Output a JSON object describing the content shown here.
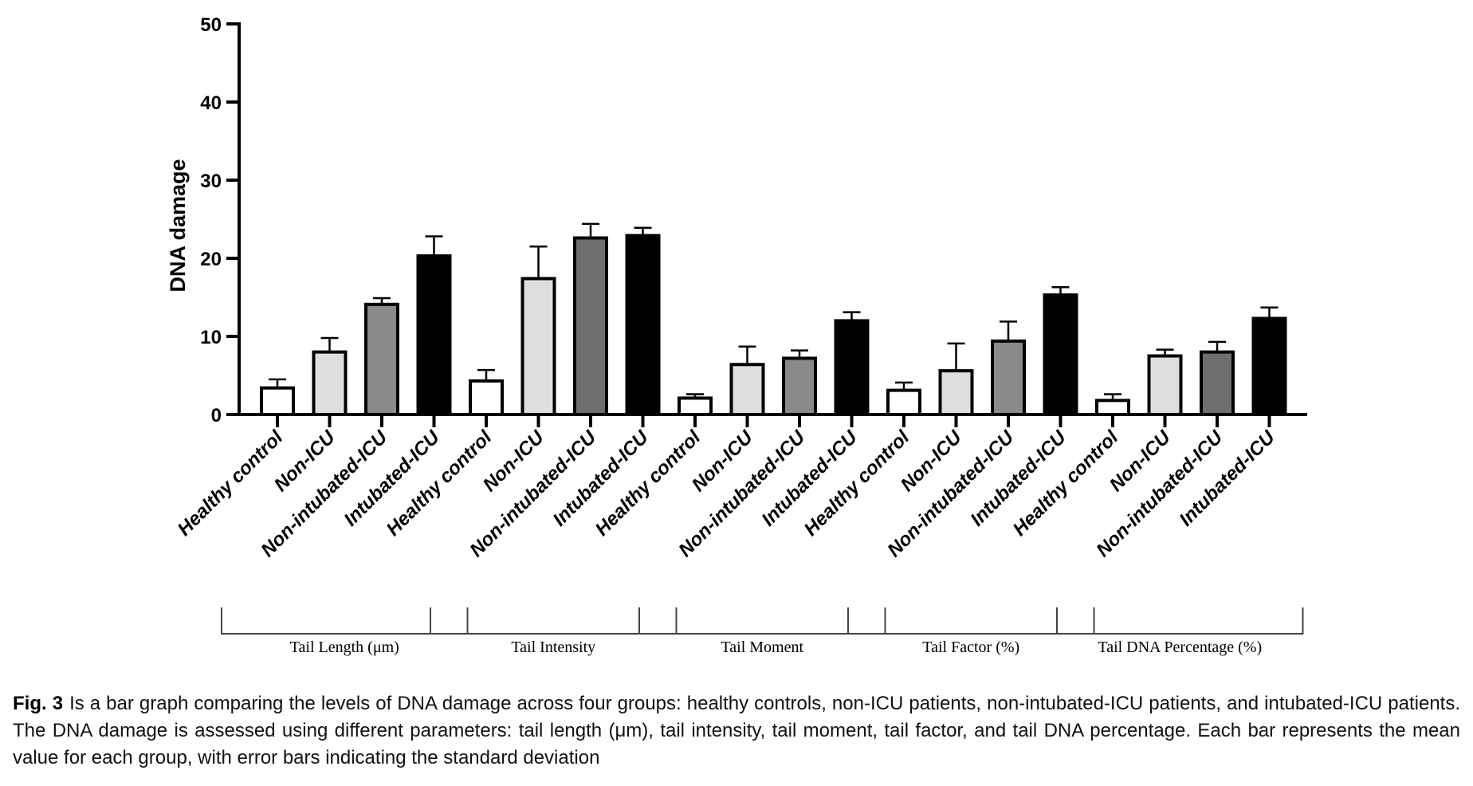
{
  "chart_data": {
    "type": "bar",
    "title": "",
    "ylabel": "DNA damage",
    "xlabel": "",
    "ylim": [
      0,
      50
    ],
    "yticks": [
      0,
      10,
      20,
      30,
      40,
      50
    ],
    "categories": [
      "Healthy control",
      "Non-ICU",
      "Non-intubated-ICU",
      "Intubated-ICU"
    ],
    "category_colors": [
      "#ffffff",
      "#dedede",
      "#8a8a8a",
      "#000000"
    ],
    "groups": [
      {
        "name": "Tail Length (μm)",
        "values": [
          3.4,
          8.0,
          14.1,
          20.3
        ],
        "errors": [
          1.1,
          1.8,
          0.8,
          2.5
        ]
      },
      {
        "name": "Tail Intensity",
        "values": [
          4.3,
          17.4,
          22.6,
          22.9
        ],
        "errors": [
          1.4,
          4.1,
          1.8,
          1.0
        ]
      },
      {
        "name": "Tail Moment",
        "values": [
          2.1,
          6.4,
          7.2,
          12.0
        ],
        "errors": [
          0.5,
          2.3,
          1.0,
          1.1
        ]
      },
      {
        "name": "Tail Factor (%)",
        "values": [
          3.1,
          5.6,
          9.4,
          15.3
        ],
        "errors": [
          1.0,
          3.5,
          2.5,
          1.0
        ]
      },
      {
        "name": "Tail DNA Percentage (%)",
        "values": [
          1.8,
          7.5,
          8.0,
          12.3
        ],
        "errors": [
          0.8,
          0.8,
          1.3,
          1.4
        ]
      }
    ],
    "group_colors_override": {
      "1": [
        "#ffffff",
        "#dedede",
        "#6e6e6e",
        "#000000"
      ],
      "4": [
        "#ffffff",
        "#dedede",
        "#6e6e6e",
        "#000000"
      ]
    },
    "error_bars": "standard deviation",
    "grid": false,
    "legend": "none"
  },
  "caption": {
    "label": "Fig. 3",
    "text": "Is a bar graph comparing the levels of DNA damage across four groups: healthy controls, non-ICU patients, non-intubated-ICU patients, and intubated-ICU patients. The DNA damage is assessed using different parameters: tail length (μm), tail intensity, tail moment, tail factor, and tail DNA percentage. Each bar represents the mean value for each group, with error bars indicating the standard deviation"
  }
}
